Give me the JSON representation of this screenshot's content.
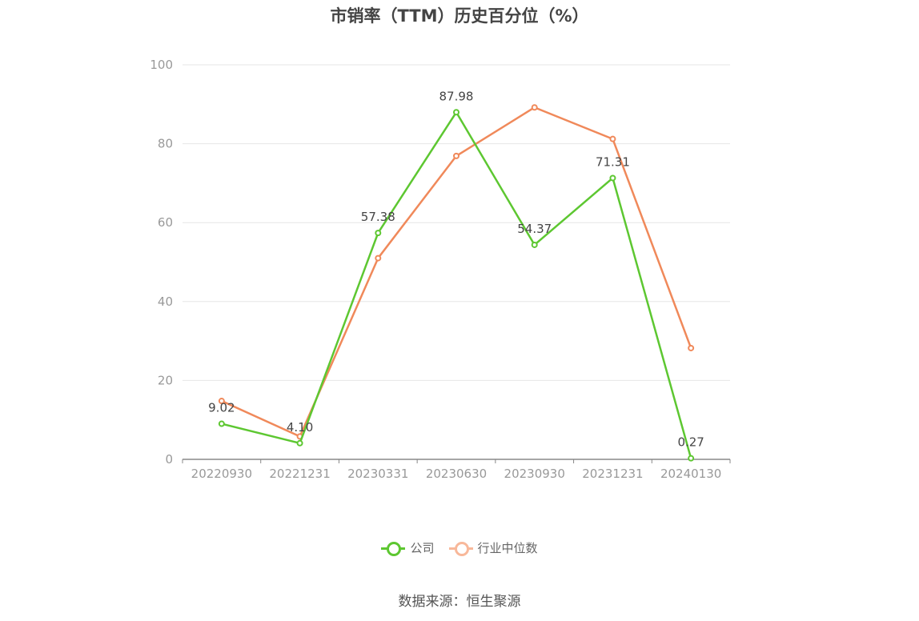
{
  "title": "市销率（TTM）历史百分位（%）",
  "source": "数据来源：恒生聚源",
  "colors": {
    "company": "#5dc731",
    "industry": "#f0895a",
    "industry_legend": "#f8b89a",
    "grid": "#e6e6e6",
    "axis": "#888888"
  },
  "chart_data": {
    "type": "line",
    "categories": [
      "20220930",
      "20221231",
      "20230331",
      "20230630",
      "20230930",
      "20231231",
      "20240130"
    ],
    "ylim": [
      0,
      100
    ],
    "yticks": [
      "0",
      "20",
      "40",
      "60",
      "80",
      "100"
    ],
    "grid": true,
    "legend_position": "bottom",
    "series": [
      {
        "name": "公司",
        "values": [
          9.02,
          4.1,
          57.38,
          87.98,
          54.37,
          71.31,
          0.27
        ],
        "labels": [
          "9.02",
          "4.10",
          "57.38",
          "87.98",
          "54.37",
          "71.31",
          "0.27"
        ]
      },
      {
        "name": "行业中位数",
        "values": [
          14.8,
          5.8,
          51.0,
          76.9,
          89.2,
          81.2,
          28.2
        ]
      }
    ]
  }
}
